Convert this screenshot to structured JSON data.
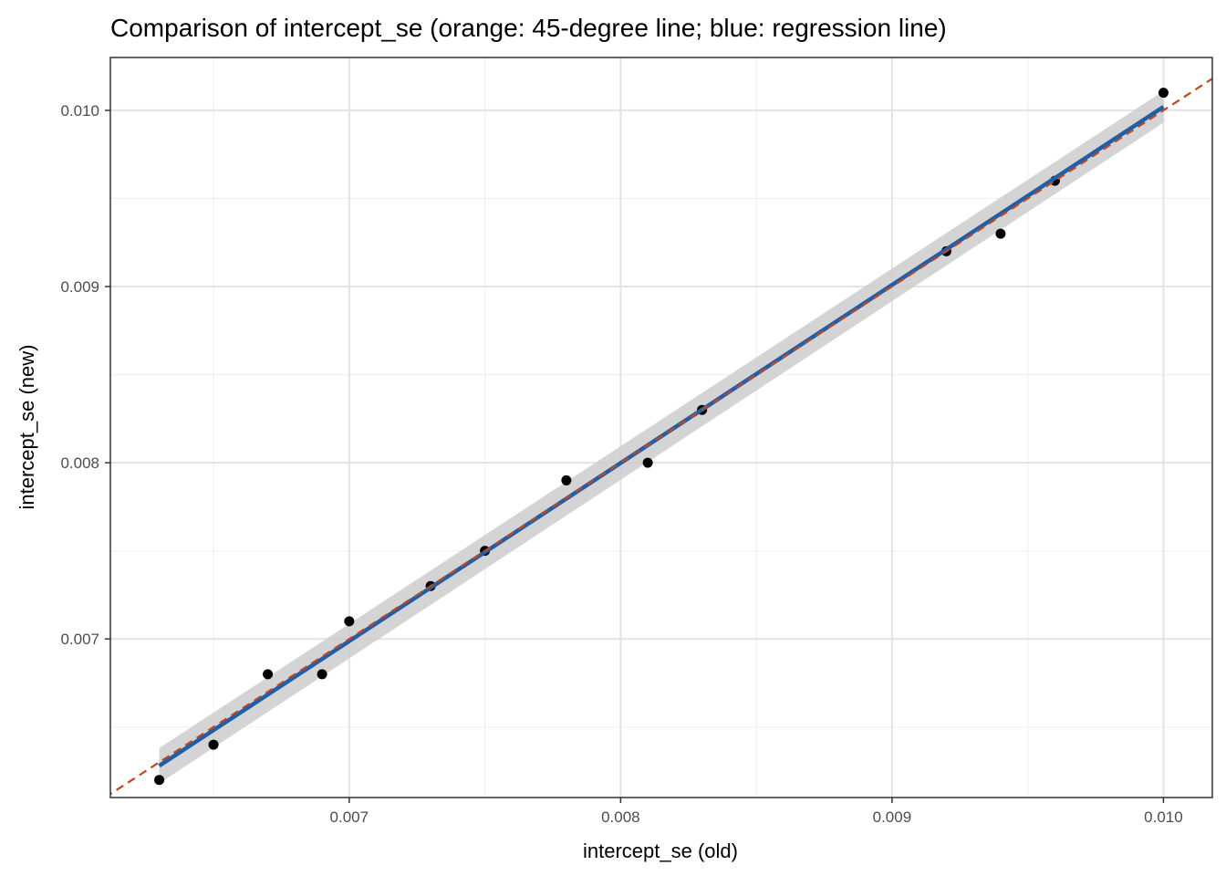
{
  "chart_data": {
    "type": "scatter",
    "title": "Comparison of intercept_se (orange: 45-degree line; blue: regression line)",
    "xlabel": "intercept_se (old)",
    "ylabel": "intercept_se (new)",
    "xlim": [
      0.00612,
      0.01018
    ],
    "ylim": [
      0.0061,
      0.0103
    ],
    "x_ticks": [
      0.007,
      0.008,
      0.009,
      0.01
    ],
    "x_tick_labels": [
      "0.007",
      "0.008",
      "0.009",
      "0.010"
    ],
    "y_ticks": [
      0.007,
      0.008,
      0.009,
      0.01
    ],
    "y_tick_labels": [
      "0.007",
      "0.008",
      "0.009",
      "0.010"
    ],
    "x_minor_ticks": [
      0.0065,
      0.0075,
      0.0085,
      0.0095
    ],
    "y_minor_ticks": [
      0.0065,
      0.0075,
      0.0085,
      0.0095
    ],
    "grid": true,
    "points": [
      {
        "x": 0.0063,
        "y": 0.0062
      },
      {
        "x": 0.0065,
        "y": 0.0064
      },
      {
        "x": 0.0067,
        "y": 0.0068
      },
      {
        "x": 0.0069,
        "y": 0.0068
      },
      {
        "x": 0.007,
        "y": 0.0071
      },
      {
        "x": 0.0073,
        "y": 0.0073
      },
      {
        "x": 0.0075,
        "y": 0.0075
      },
      {
        "x": 0.0078,
        "y": 0.0079
      },
      {
        "x": 0.0081,
        "y": 0.008
      },
      {
        "x": 0.0083,
        "y": 0.0083
      },
      {
        "x": 0.0092,
        "y": 0.0092
      },
      {
        "x": 0.0094,
        "y": 0.0093
      },
      {
        "x": 0.0096,
        "y": 0.0096
      },
      {
        "x": 0.01,
        "y": 0.0101
      }
    ],
    "regression_line": {
      "color": "#1f5ea8",
      "x": [
        0.0063,
        0.01
      ],
      "y": [
        0.00628,
        0.01002
      ],
      "band_color": "#cccccc",
      "band_low": [
        0.00618,
        0.00993
      ],
      "band_high": [
        0.00638,
        0.01011
      ]
    },
    "reference_line": {
      "color": "#c0481f",
      "style": "dashed",
      "slope": 1,
      "intercept": 0
    },
    "point_color": "#000000"
  }
}
